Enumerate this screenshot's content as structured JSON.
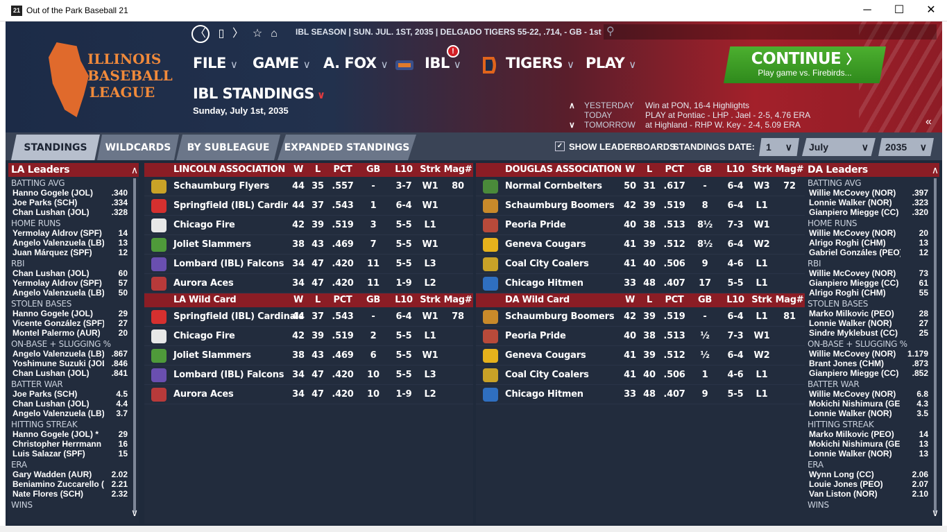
{
  "window": {
    "title": "Out of the Park Baseball 21",
    "icon_text": "21",
    "minimize": "─",
    "maximize": "☐",
    "close": "✕"
  },
  "nav": {
    "back": "〈",
    "page": "▯",
    "forward": "〉",
    "star": "☆",
    "home": "⌂"
  },
  "info": "IBL SEASON  |  SUN. JUL. 1ST, 2035  |  DELGADO TIGERS   55-22, .714, - GB - 1st",
  "search_icon": "⚲",
  "logo": {
    "lines": [
      "ILLINOIS",
      "BASEBALL",
      "LEAGUE"
    ]
  },
  "menus": {
    "file": "FILE",
    "game": "GAME",
    "manager": "A. FOX",
    "league": "IBL",
    "team": "TIGERS",
    "play": "PLAY",
    "chevron": "∨"
  },
  "badge": "!",
  "page": {
    "title": "IBL STANDINGS",
    "title_chevron": "∨",
    "date": "Sunday, July 1st, 2035"
  },
  "continue": {
    "label": "CONTINUE",
    "arrow": "〉",
    "sub": "Play game vs. Firebirds..."
  },
  "schedule": [
    {
      "arrow": "∧",
      "label": "YESTERDAY",
      "value": "Win at PON, 16-4     Highlights"
    },
    {
      "arrow": "",
      "label": "TODAY",
      "value": "PLAY at Pontiac - LHP  . Jael - 2-5, 4.76 ERA"
    },
    {
      "arrow": "∨",
      "label": "TOMORROW",
      "value": "at Highland - RHP W. Key - 2-4, 5.09 ERA"
    }
  ],
  "collapse": "«",
  "tabs": [
    "STANDINGS",
    "WILDCARDS",
    "BY SUBLEAGUE",
    "EXPANDED STANDINGS"
  ],
  "controls": {
    "show_leaderboards": "SHOW LEADERBOARDS",
    "check": "✓",
    "standings_date": "STANDINGS DATE:",
    "day": "1",
    "month": "July",
    "year": "2035",
    "chevron": "∨"
  },
  "scroll": {
    "up": "∧",
    "down": "∨"
  },
  "columns": [
    "W",
    "L",
    "PCT",
    "GB",
    "L10",
    "Strk",
    "Mag#"
  ],
  "la_leaders": {
    "title": "LA Leaders",
    "cats": [
      {
        "name": "BATTING AVG",
        "rows": [
          [
            "Hanno Gogele (JOL)",
            ".340"
          ],
          [
            "Joe Parks (SCH)",
            ".334"
          ],
          [
            "Chan Lushan (JOL)",
            ".328"
          ]
        ]
      },
      {
        "name": "HOME RUNS",
        "rows": [
          [
            "Yermolay Aldrov (SPF)",
            "14"
          ],
          [
            "Angelo Valenzuela (LB)",
            "13"
          ],
          [
            "Juan Márquez (SPF)",
            "12"
          ]
        ]
      },
      {
        "name": "RBI",
        "rows": [
          [
            "Chan Lushan (JOL)",
            "60"
          ],
          [
            "Yermolay Aldrov (SPF)",
            "57"
          ],
          [
            "Angelo Valenzuela (LB)",
            "50"
          ]
        ]
      },
      {
        "name": "STOLEN BASES",
        "rows": [
          [
            "Hanno Gogele (JOL)",
            "29"
          ],
          [
            "Vicente González (SPF)",
            "27"
          ],
          [
            "Montel Palermo (AUR)",
            "20"
          ]
        ]
      },
      {
        "name": "ON-BASE + SLUGGING %",
        "rows": [
          [
            "Angelo Valenzuela (LB)",
            ".867"
          ],
          [
            "Yoshimune Suzuki (JOL",
            ".846"
          ],
          [
            "Chan Lushan (JOL)",
            ".841"
          ]
        ]
      },
      {
        "name": "BATTER WAR",
        "rows": [
          [
            "Joe Parks (SCH)",
            "4.5"
          ],
          [
            "Chan Lushan (JOL)",
            "4.4"
          ],
          [
            "Angelo Valenzuela (LB)",
            "3.7"
          ]
        ]
      },
      {
        "name": "HITTING STREAK",
        "rows": [
          [
            "Hanno Gogele (JOL) *",
            "29"
          ],
          [
            "Christopher Herrmann",
            "16"
          ],
          [
            "Luis Salazar (SPF)",
            "15"
          ]
        ]
      },
      {
        "name": "ERA",
        "rows": [
          [
            "Gary Wadden (AUR)",
            "2.02"
          ],
          [
            "Beniamino Zuccarello (",
            "2.21"
          ],
          [
            "Nate Flores (SCH)",
            "2.32"
          ]
        ]
      },
      {
        "name": "WINS",
        "rows": []
      }
    ]
  },
  "da_leaders": {
    "title": "DA Leaders",
    "cats": [
      {
        "name": "BATTING AVG",
        "rows": [
          [
            "Willie McCovey (NOR)",
            ".397"
          ],
          [
            "Lonnie Walker (NOR)",
            ".323"
          ],
          [
            "Gianpiero Miegge (CC)",
            ".320"
          ]
        ]
      },
      {
        "name": "HOME RUNS",
        "rows": [
          [
            "Willie McCovey (NOR)",
            "20"
          ],
          [
            "Alrigo Roghi (CHM)",
            "13"
          ],
          [
            "Gabriel Gonzáles (PEO)",
            "12"
          ]
        ]
      },
      {
        "name": "RBI",
        "rows": [
          [
            "Willie McCovey (NOR)",
            "73"
          ],
          [
            "Gianpiero Miegge (CC)",
            "61"
          ],
          [
            "Alrigo Roghi (CHM)",
            "55"
          ]
        ]
      },
      {
        "name": "STOLEN BASES",
        "rows": [
          [
            "Marko Milkovic (PEO)",
            "28"
          ],
          [
            "Lonnie Walker (NOR)",
            "27"
          ],
          [
            "Sindre Myklebust (CC)",
            "25"
          ]
        ]
      },
      {
        "name": "ON-BASE + SLUGGING %",
        "rows": [
          [
            "Willie McCovey (NOR)",
            "1.179"
          ],
          [
            "Brant Jones (CHM)",
            ".873"
          ],
          [
            "Gianpiero Miegge (CC)",
            ".852"
          ]
        ]
      },
      {
        "name": "BATTER WAR",
        "rows": [
          [
            "Willie McCovey (NOR)",
            "6.8"
          ],
          [
            "Mokichi Nishimura (GEN",
            "4.3"
          ],
          [
            "Lonnie Walker (NOR)",
            "3.5"
          ]
        ]
      },
      {
        "name": "HITTING STREAK",
        "rows": [
          [
            "Marko Milkovic (PEO)",
            "14"
          ],
          [
            "Mokichi Nishimura (GEN",
            "13"
          ],
          [
            "Lonnie Walker (NOR)",
            "13"
          ]
        ]
      },
      {
        "name": "ERA",
        "rows": [
          [
            "Wynn Long (CC)",
            "2.06"
          ],
          [
            "Louie Jones (PEO)",
            "2.07"
          ],
          [
            "Van Liston (NOR)",
            "2.10"
          ]
        ]
      },
      {
        "name": "WINS",
        "rows": []
      }
    ]
  },
  "lincoln": {
    "title": "LINCOLN ASSOCIATION",
    "rows": [
      {
        "team": "Schaumburg Flyers",
        "w": "44",
        "l": "35",
        "pct": ".557",
        "gb": "-",
        "l10": "3-7",
        "strk": "W1",
        "mag": "80",
        "color": "#c9a227"
      },
      {
        "team": "Springfield (IBL) Cardir",
        "w": "44",
        "l": "37",
        "pct": ".543",
        "gb": "1",
        "l10": "6-4",
        "strk": "W1",
        "mag": "",
        "color": "#d5302f"
      },
      {
        "team": "Chicago Fire",
        "w": "42",
        "l": "39",
        "pct": ".519",
        "gb": "3",
        "l10": "5-5",
        "strk": "L1",
        "mag": "",
        "color": "#e8e8e8"
      },
      {
        "team": "Joliet Slammers",
        "w": "38",
        "l": "43",
        "pct": ".469",
        "gb": "7",
        "l10": "5-5",
        "strk": "W1",
        "mag": "",
        "color": "#4f9a3a"
      },
      {
        "team": "Lombard (IBL) Falcons",
        "w": "34",
        "l": "47",
        "pct": ".420",
        "gb": "11",
        "l10": "5-5",
        "strk": "L3",
        "mag": "",
        "color": "#6a4fb0"
      },
      {
        "team": "Aurora Aces",
        "w": "34",
        "l": "47",
        "pct": ".420",
        "gb": "11",
        "l10": "1-9",
        "strk": "L2",
        "mag": "",
        "color": "#b83a3a"
      }
    ],
    "wc_title": "LA  Wild Card",
    "wc_rows": [
      {
        "team": "Springfield (IBL) Cardinals",
        "w": "44",
        "l": "37",
        "pct": ".543",
        "gb": "-",
        "l10": "6-4",
        "strk": "W1",
        "mag": "78",
        "color": "#d5302f"
      },
      {
        "team": "Chicago Fire",
        "w": "42",
        "l": "39",
        "pct": ".519",
        "gb": "2",
        "l10": "5-5",
        "strk": "L1",
        "mag": "",
        "color": "#e8e8e8"
      },
      {
        "team": "Joliet Slammers",
        "w": "38",
        "l": "43",
        "pct": ".469",
        "gb": "6",
        "l10": "5-5",
        "strk": "W1",
        "mag": "",
        "color": "#4f9a3a"
      },
      {
        "team": "Lombard (IBL) Falcons",
        "w": "34",
        "l": "47",
        "pct": ".420",
        "gb": "10",
        "l10": "5-5",
        "strk": "L3",
        "mag": "",
        "color": "#6a4fb0"
      },
      {
        "team": "Aurora Aces",
        "w": "34",
        "l": "47",
        "pct": ".420",
        "gb": "10",
        "l10": "1-9",
        "strk": "L2",
        "mag": "",
        "color": "#b83a3a"
      }
    ]
  },
  "douglas": {
    "title": "DOUGLAS ASSOCIATION",
    "rows": [
      {
        "team": "Normal Cornbelters",
        "w": "50",
        "l": "31",
        "pct": ".617",
        "gb": "-",
        "l10": "6-4",
        "strk": "W3",
        "mag": "72",
        "color": "#4a8a3a"
      },
      {
        "team": "Schaumburg Boomers",
        "w": "42",
        "l": "39",
        "pct": ".519",
        "gb": "8",
        "l10": "6-4",
        "strk": "L1",
        "mag": "",
        "color": "#c98a2a"
      },
      {
        "team": "Peoria Pride",
        "w": "40",
        "l": "38",
        "pct": ".513",
        "gb": "8½",
        "l10": "7-3",
        "strk": "W1",
        "mag": "",
        "color": "#b84a3a"
      },
      {
        "team": "Geneva Cougars",
        "w": "41",
        "l": "39",
        "pct": ".512",
        "gb": "8½",
        "l10": "6-4",
        "strk": "W2",
        "mag": "",
        "color": "#e6b21c"
      },
      {
        "team": "Coal City Coalers",
        "w": "41",
        "l": "40",
        "pct": ".506",
        "gb": "9",
        "l10": "4-6",
        "strk": "L1",
        "mag": "",
        "color": "#c9a227"
      },
      {
        "team": "Chicago Hitmen",
        "w": "33",
        "l": "48",
        "pct": ".407",
        "gb": "17",
        "l10": "5-5",
        "strk": "L1",
        "mag": "",
        "color": "#2f6fc0"
      }
    ],
    "wc_title": "DA  Wild Card",
    "wc_rows": [
      {
        "team": "Schaumburg Boomers",
        "w": "42",
        "l": "39",
        "pct": ".519",
        "gb": "-",
        "l10": "6-4",
        "strk": "L1",
        "mag": "81",
        "color": "#c98a2a"
      },
      {
        "team": "Peoria Pride",
        "w": "40",
        "l": "38",
        "pct": ".513",
        "gb": "½",
        "l10": "7-3",
        "strk": "W1",
        "mag": "",
        "color": "#b84a3a"
      },
      {
        "team": "Geneva Cougars",
        "w": "41",
        "l": "39",
        "pct": ".512",
        "gb": "½",
        "l10": "6-4",
        "strk": "W2",
        "mag": "",
        "color": "#e6b21c"
      },
      {
        "team": "Coal City Coalers",
        "w": "41",
        "l": "40",
        "pct": ".506",
        "gb": "1",
        "l10": "4-6",
        "strk": "L1",
        "mag": "",
        "color": "#c9a227"
      },
      {
        "team": "Chicago Hitmen",
        "w": "33",
        "l": "48",
        "pct": ".407",
        "gb": "9",
        "l10": "5-5",
        "strk": "L1",
        "mag": "",
        "color": "#2f6fc0"
      }
    ]
  }
}
